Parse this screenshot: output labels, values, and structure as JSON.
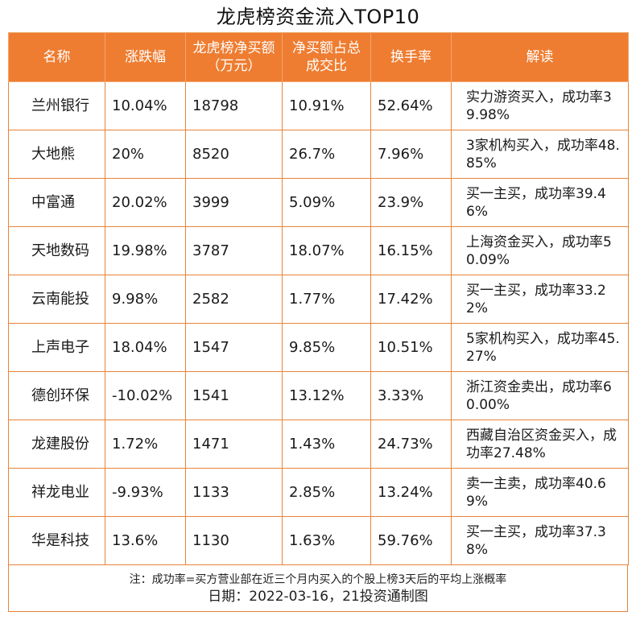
{
  "title": "龙虎榜资金流入TOP10",
  "headers": {
    "name": "名称",
    "change": "涨跌幅",
    "net_buy": "龙虎榜净买额（万元）",
    "ratio": "净买额占总成交比",
    "turnover": "换手率",
    "interpret": "解读"
  },
  "rows": [
    {
      "name": "兰州银行",
      "change": "10.04%",
      "net_buy": "18798",
      "ratio": "10.91%",
      "turnover": "52.64%",
      "interpret": "实力游资买入，成功率39.98%"
    },
    {
      "name": "大地熊",
      "change": "20%",
      "net_buy": "8520",
      "ratio": "26.7%",
      "turnover": "7.96%",
      "interpret": "3家机构买入，成功率48.85%"
    },
    {
      "name": "中富通",
      "change": "20.02%",
      "net_buy": "3999",
      "ratio": "5.09%",
      "turnover": "23.9%",
      "interpret": "买一主买，成功率39.46%"
    },
    {
      "name": "天地数码",
      "change": "19.98%",
      "net_buy": "3787",
      "ratio": "18.07%",
      "turnover": "16.15%",
      "interpret": "上海资金买入，成功率50.09%"
    },
    {
      "name": "云南能投",
      "change": "9.98%",
      "net_buy": "2582",
      "ratio": "1.77%",
      "turnover": "17.42%",
      "interpret": "买一主买，成功率33.22%"
    },
    {
      "name": "上声电子",
      "change": "18.04%",
      "net_buy": "1547",
      "ratio": "9.85%",
      "turnover": "10.51%",
      "interpret": "5家机构买入，成功率45.27%"
    },
    {
      "name": "德创环保",
      "change": "-10.02%",
      "net_buy": "1541",
      "ratio": "13.12%",
      "turnover": "3.33%",
      "interpret": "浙江资金卖出，成功率60.00%"
    },
    {
      "name": "龙建股份",
      "change": "1.72%",
      "net_buy": "1471",
      "ratio": "1.43%",
      "turnover": "24.73%",
      "interpret": "西藏自治区资金买入，成功率27.48%"
    },
    {
      "name": "祥龙电业",
      "change": "-9.93%",
      "net_buy": "1133",
      "ratio": "2.85%",
      "turnover": "13.24%",
      "interpret": "卖一主卖，成功率40.69%"
    },
    {
      "name": "华是科技",
      "change": "13.6%",
      "net_buy": "1130",
      "ratio": "1.63%",
      "turnover": "59.76%",
      "interpret": "买一主买，成功率37.38%"
    }
  ],
  "footer": {
    "note": "注：成功率=买方营业部在近三个月内买入的个股上榜3天后的平均上涨概率",
    "date": "日期：2022-03-16，21投资通制图"
  },
  "colors": {
    "header_bg": "#ee7d31",
    "border": "#e8833a"
  }
}
